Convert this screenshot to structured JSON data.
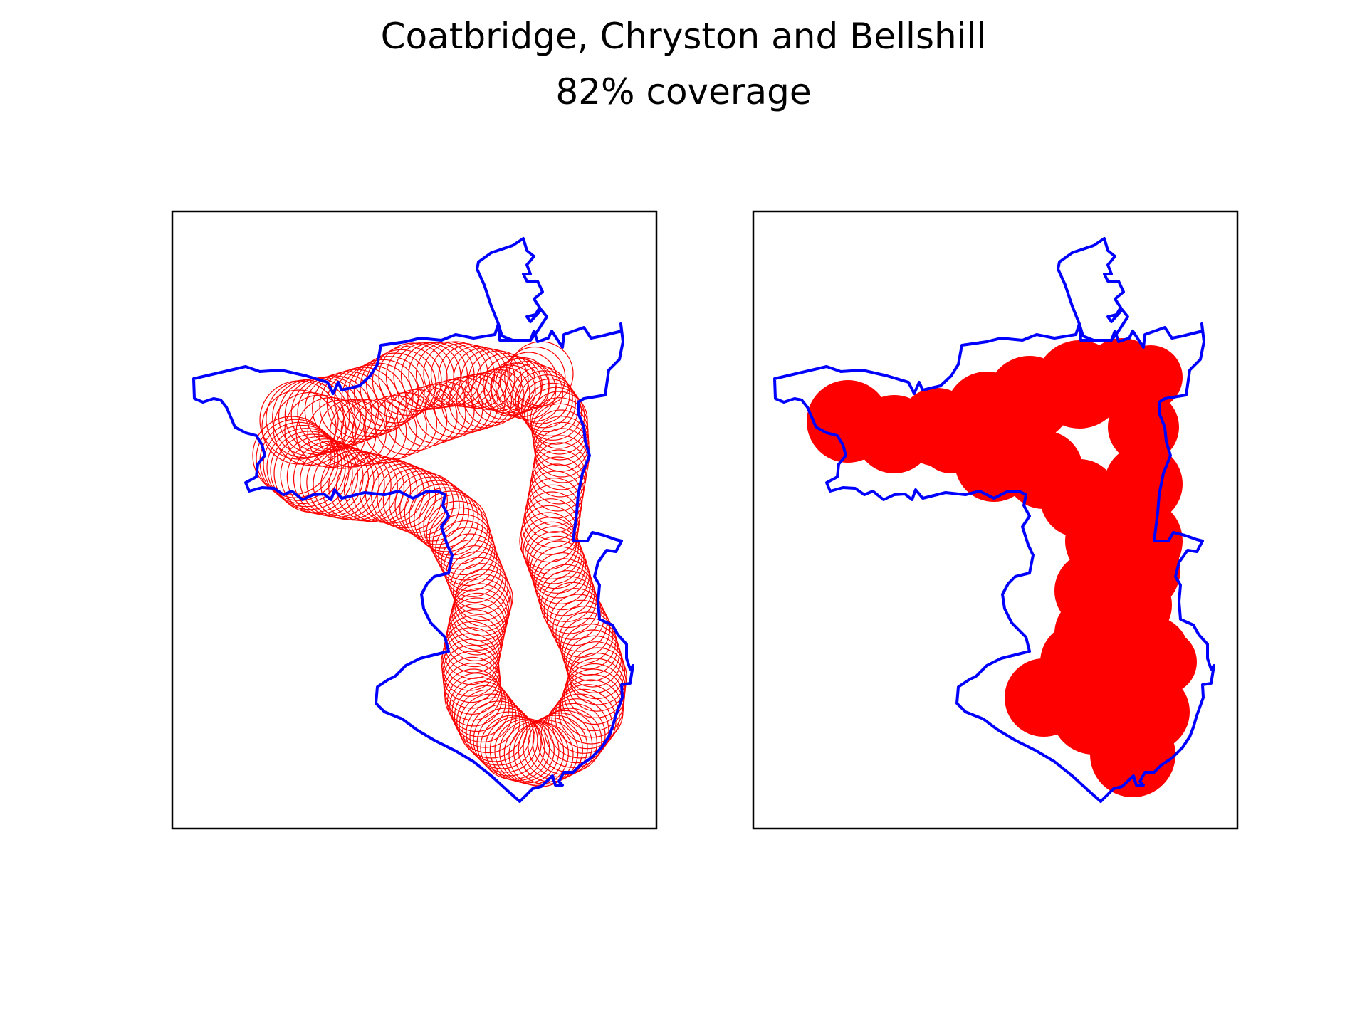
{
  "figure": {
    "title": "Coatbridge, Chryston and Bellshill",
    "subtitle": "82% coverage"
  },
  "map": {
    "boundary_color": "#0000ff",
    "coverage_color": "#ff0000",
    "frame_color": "#000000",
    "panels": [
      {
        "name": "left",
        "coverage_style": "circle outlines"
      },
      {
        "name": "right",
        "coverage_style": "filled circles"
      }
    ]
  }
}
